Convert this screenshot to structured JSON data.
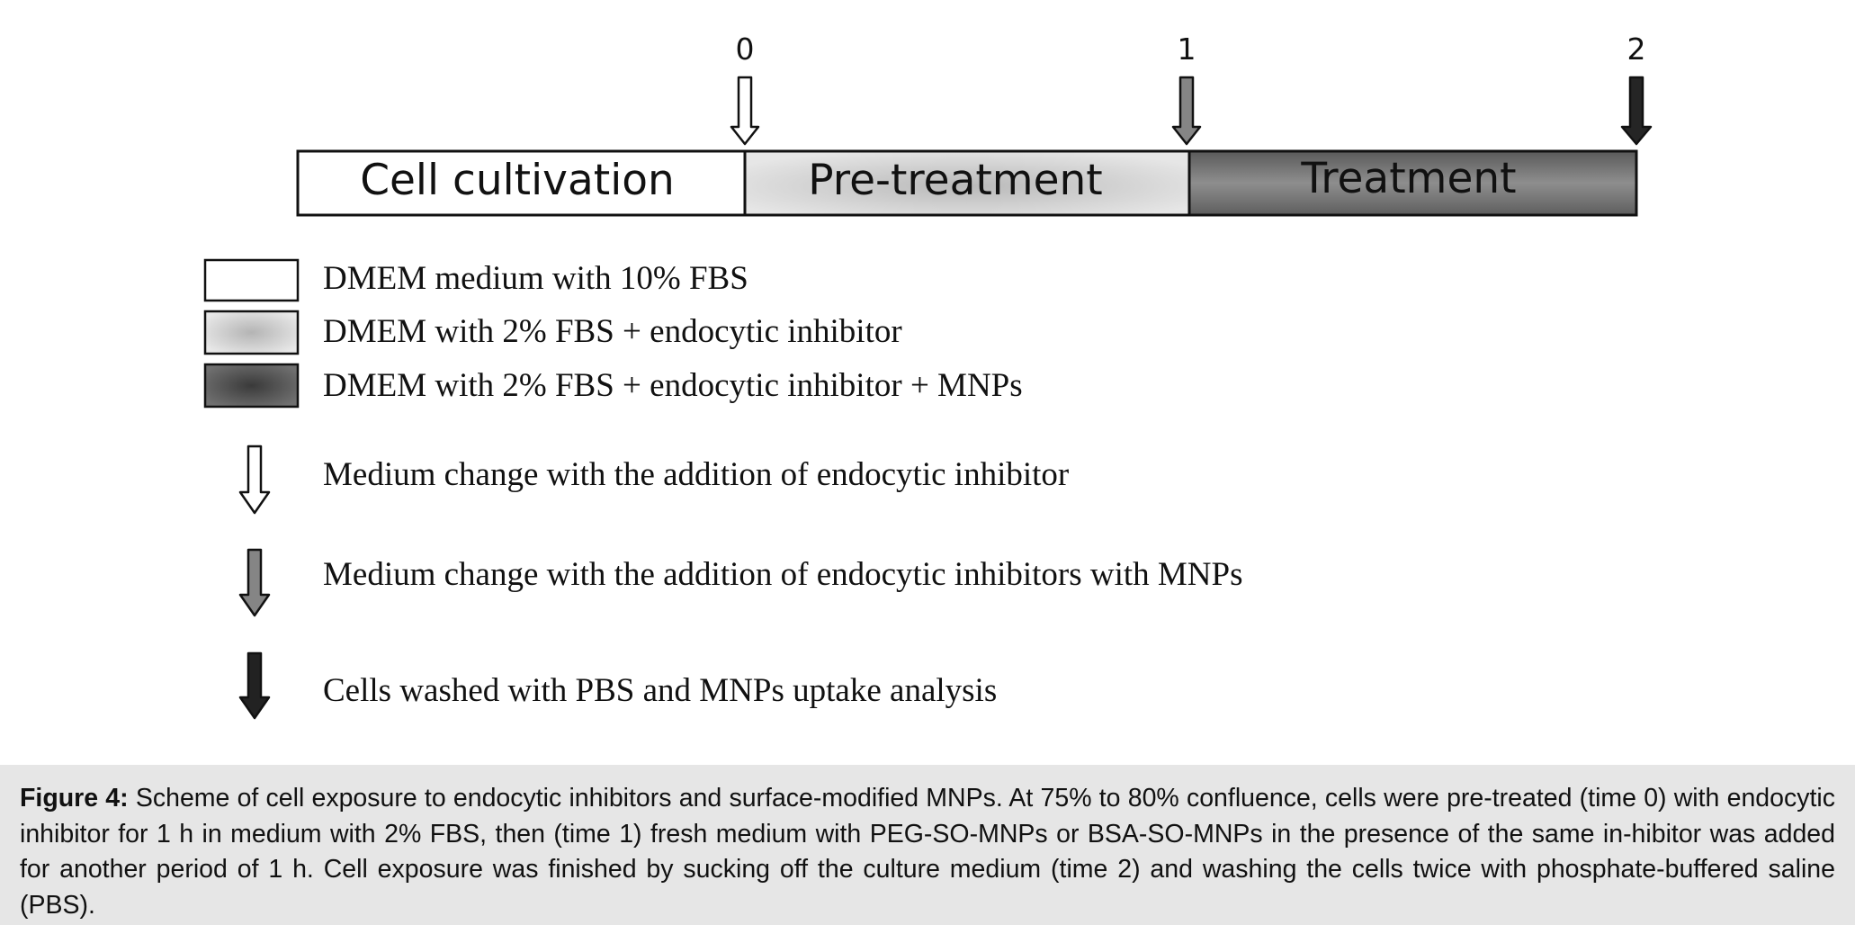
{
  "timeline": {
    "phases": [
      {
        "label": "Cell cultivation",
        "fill": "#ffffff"
      },
      {
        "label": "Pre-treatment",
        "fill": "#c9c9c9"
      },
      {
        "label": "Treatment",
        "fill": "#6e6e6e"
      }
    ],
    "time_points": [
      "0",
      "1",
      "2"
    ],
    "arrow_colors": [
      "#ffffff",
      "#8a8a8a",
      "#2a2a2a"
    ]
  },
  "legend": {
    "boxes": [
      {
        "text": "DMEM medium with 10% FBS",
        "fill": "#ffffff"
      },
      {
        "text": "DMEM with 2% FBS + endocytic inhibitor",
        "fill": "#c6c6c6"
      },
      {
        "text": "DMEM with 2% FBS + endocytic inhibitor + MNPs",
        "fill": "#4a4a4a"
      }
    ],
    "arrows": [
      {
        "text": "Medium change with the addition of endocytic inhibitor",
        "fill": "#ffffff"
      },
      {
        "text": "Medium change with the addition of endocytic inhibitors with MNPs",
        "fill": "#8a8a8a"
      },
      {
        "text": "Cells washed with PBS and MNPs uptake analysis",
        "fill": "#222222"
      }
    ]
  },
  "caption": {
    "label": "Figure 4:",
    "text": "Scheme of cell exposure to endocytic inhibitors and surface-modified MNPs. At 75% to 80% confluence, cells were pre-treated (time 0) with endocytic inhibitor for 1 h in medium with 2% FBS, then (time 1) fresh medium with PEG-SO-MNPs or BSA-SO-MNPs in the presence of the same in-hibitor was added for another period of 1 h. Cell exposure was finished by sucking off the culture medium (time 2) and washing the cells twice with phosphate-buffered saline (PBS)."
  }
}
